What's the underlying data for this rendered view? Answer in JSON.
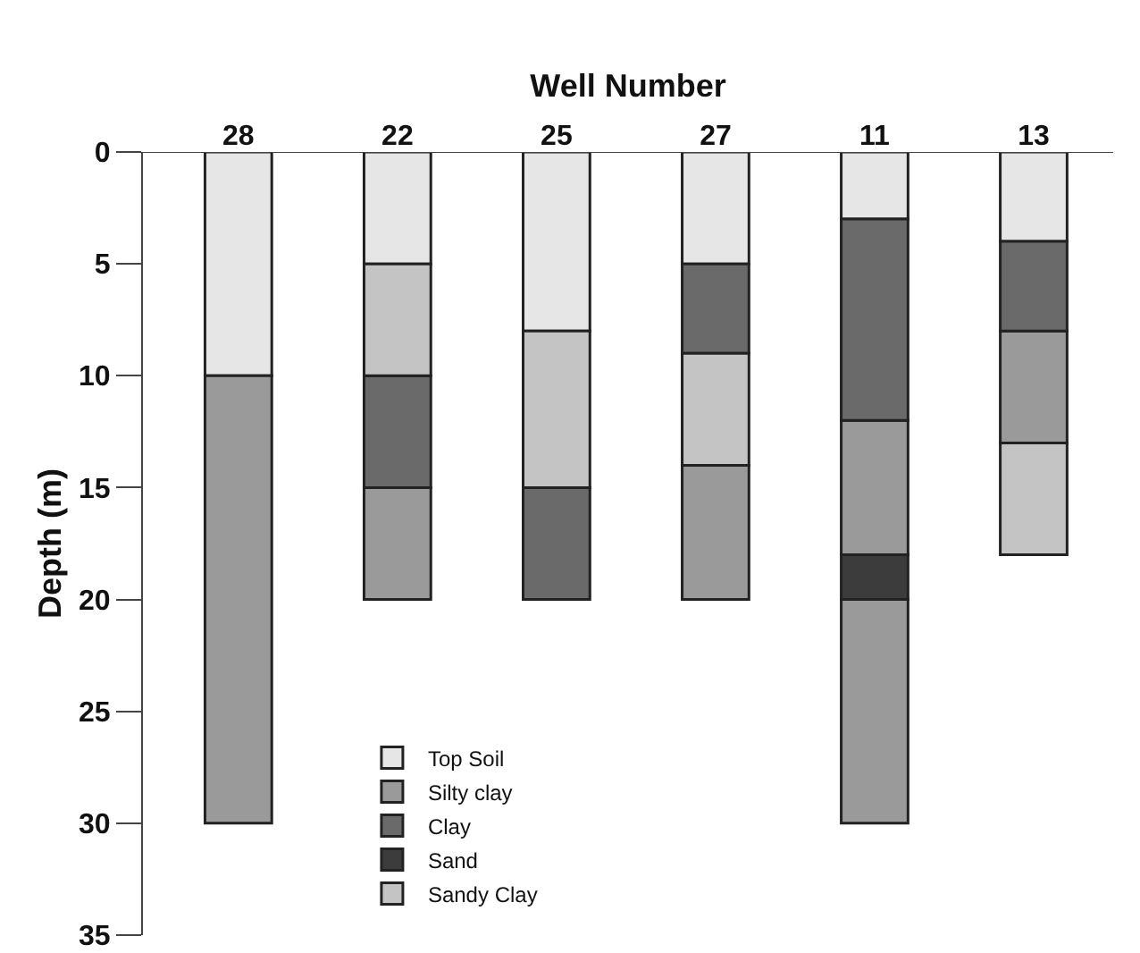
{
  "chart_data": {
    "type": "bar",
    "xlabel": "Well Number",
    "ylabel": "Depth (m)",
    "categories": [
      "28",
      "22",
      "25",
      "27",
      "11",
      "13"
    ],
    "series": [
      {
        "name": "Top Soil",
        "color": "#e6e6e6",
        "values": [
          10,
          5,
          8,
          5,
          3,
          4
        ],
        "base": [
          0,
          0,
          0,
          0,
          0,
          0
        ]
      },
      {
        "name": "Silty clay",
        "color": "#9a9a9a",
        "values": [
          20,
          5,
          null,
          6,
          6,
          5
        ],
        "base": [
          10,
          15,
          null,
          14,
          12,
          8
        ]
      },
      {
        "name": "Clay",
        "color": "#6a6a6a",
        "values": [
          null,
          5,
          5,
          4,
          9,
          4
        ],
        "base": [
          null,
          10,
          15,
          5,
          3,
          4
        ]
      },
      {
        "name": "Sand",
        "color": "#3c3c3c",
        "values": [
          null,
          null,
          null,
          null,
          2,
          null
        ],
        "base": [
          null,
          null,
          null,
          null,
          18,
          null
        ]
      },
      {
        "name": "Sandy Clay",
        "color": "#c4c4c4",
        "values": [
          null,
          5,
          7,
          5,
          null,
          5
        ],
        "base": [
          null,
          5,
          8,
          9,
          null,
          13
        ]
      },
      {
        "color": "#9a9a9a",
        "values": [
          null,
          null,
          null,
          null,
          10,
          null
        ],
        "base": [
          null,
          null,
          null,
          null,
          20,
          null
        ]
      }
    ],
    "ylim": [
      35,
      0
    ],
    "yticks": [
      0,
      5,
      10,
      15,
      20,
      25,
      30,
      35
    ],
    "grid": false,
    "legend": "bottom"
  }
}
